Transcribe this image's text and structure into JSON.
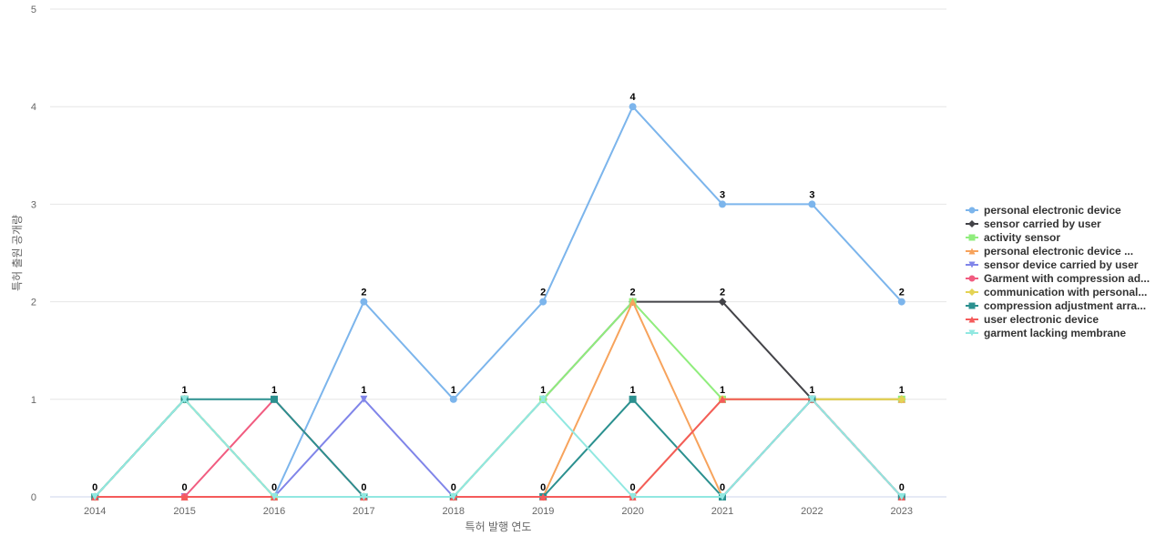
{
  "chart_data": {
    "type": "line",
    "xlabel": "특허 발행 연도",
    "ylabel": "특허 출원 공개량",
    "categories": [
      "2014",
      "2015",
      "2016",
      "2017",
      "2018",
      "2019",
      "2020",
      "2021",
      "2022",
      "2023"
    ],
    "ylim": [
      0,
      5
    ],
    "yticks": [
      0,
      1,
      2,
      3,
      4,
      5
    ],
    "grid": true,
    "legend_position": "right",
    "series": [
      {
        "name": "personal electronic device",
        "color": "#7cb5ec",
        "marker": "circle",
        "values": [
          0,
          1,
          0,
          2,
          1,
          2,
          4,
          3,
          3,
          2
        ]
      },
      {
        "name": "sensor carried by user",
        "color": "#434348",
        "marker": "diamond",
        "values": [
          0,
          1,
          0,
          0,
          0,
          1,
          2,
          2,
          1,
          1
        ]
      },
      {
        "name": "activity sensor",
        "color": "#90ed7d",
        "marker": "square",
        "values": [
          0,
          1,
          0,
          0,
          0,
          1,
          2,
          1,
          1,
          1
        ]
      },
      {
        "name": "personal electronic device ...",
        "color": "#f7a35c",
        "marker": "triangle",
        "values": [
          0,
          0,
          0,
          0,
          0,
          0,
          2,
          0,
          1,
          1
        ]
      },
      {
        "name": "sensor device carried by user",
        "color": "#8085e9",
        "marker": "triangle-down",
        "values": [
          0,
          0,
          0,
          1,
          0,
          0,
          0,
          0,
          1,
          0
        ]
      },
      {
        "name": "Garment with compression ad...",
        "color": "#f15c80",
        "marker": "circle",
        "values": [
          0,
          0,
          1,
          0,
          0,
          0,
          0,
          0,
          1,
          0
        ]
      },
      {
        "name": "communication with personal...",
        "color": "#e4d354",
        "marker": "diamond",
        "values": [
          0,
          1,
          0,
          0,
          0,
          0,
          0,
          1,
          1,
          1
        ]
      },
      {
        "name": "compression adjustment arra...",
        "color": "#2b908f",
        "marker": "square",
        "values": [
          0,
          1,
          1,
          0,
          0,
          0,
          1,
          0,
          1,
          0
        ]
      },
      {
        "name": "user electronic device",
        "color": "#f45b5b",
        "marker": "triangle",
        "values": [
          0,
          0,
          0,
          0,
          0,
          0,
          0,
          1,
          1,
          0
        ]
      },
      {
        "name": "garment lacking membrane",
        "color": "#91e8e1",
        "marker": "triangle-down",
        "values": [
          0,
          1,
          0,
          0,
          0,
          1,
          0,
          0,
          1,
          0
        ]
      }
    ],
    "data_labels": [
      {
        "x": "2014",
        "y": 0,
        "text": "0"
      },
      {
        "x": "2015",
        "y": 1,
        "text": "1"
      },
      {
        "x": "2015",
        "y": 0,
        "text": "0"
      },
      {
        "x": "2016",
        "y": 1,
        "text": "1"
      },
      {
        "x": "2016",
        "y": 0,
        "text": "0"
      },
      {
        "x": "2017",
        "y": 2,
        "text": "2"
      },
      {
        "x": "2017",
        "y": 1,
        "text": "1"
      },
      {
        "x": "2017",
        "y": 0,
        "text": "0"
      },
      {
        "x": "2018",
        "y": 1,
        "text": "1"
      },
      {
        "x": "2018",
        "y": 0,
        "text": "0"
      },
      {
        "x": "2019",
        "y": 2,
        "text": "2"
      },
      {
        "x": "2019",
        "y": 1,
        "text": "1"
      },
      {
        "x": "2019",
        "y": 0,
        "text": "0"
      },
      {
        "x": "2020",
        "y": 4,
        "text": "4"
      },
      {
        "x": "2020",
        "y": 2,
        "text": "2"
      },
      {
        "x": "2020",
        "y": 1,
        "text": "1"
      },
      {
        "x": "2020",
        "y": 0,
        "text": "0"
      },
      {
        "x": "2021",
        "y": 3,
        "text": "3"
      },
      {
        "x": "2021",
        "y": 2,
        "text": "2"
      },
      {
        "x": "2021",
        "y": 1,
        "text": "1"
      },
      {
        "x": "2021",
        "y": 0,
        "text": "0"
      },
      {
        "x": "2022",
        "y": 3,
        "text": "3"
      },
      {
        "x": "2022",
        "y": 1,
        "text": "1"
      },
      {
        "x": "2023",
        "y": 2,
        "text": "2"
      },
      {
        "x": "2023",
        "y": 1,
        "text": "1"
      },
      {
        "x": "2023",
        "y": 0,
        "text": "0"
      }
    ]
  }
}
